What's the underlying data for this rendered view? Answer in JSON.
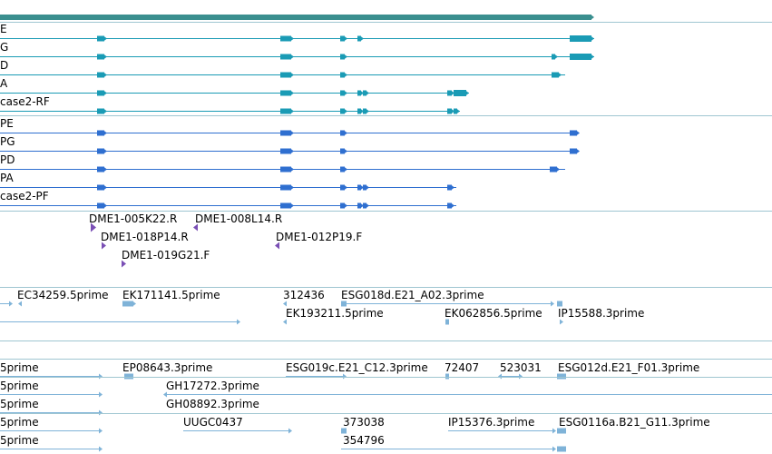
{
  "colors": {
    "gene_span": "#3a8f8f",
    "rna": "#1a9bb5",
    "protein": "#2f6fd0",
    "clone": "#7a4fb5",
    "est": "#7fb3d8",
    "separator": "#9fc6d1"
  },
  "tracks": {
    "transcripts": [
      {
        "label": "E"
      },
      {
        "label": "G"
      },
      {
        "label": "D"
      },
      {
        "label": "A"
      },
      {
        "label": "case2-RF"
      }
    ],
    "polypeptides": [
      {
        "label": "PE"
      },
      {
        "label": "PG"
      },
      {
        "label": "PD"
      },
      {
        "label": "PA"
      },
      {
        "label": "case2-PF"
      }
    ],
    "clone_ends": [
      {
        "label": "DME1-005K22.R"
      },
      {
        "label": "DME1-008L14.R"
      },
      {
        "label": "DME1-018P14.R"
      },
      {
        "label": "DME1-012P19.F"
      },
      {
        "label": "DME1-019G21.F"
      }
    ],
    "ests_a": [
      {
        "label": "EC34259.5prime"
      },
      {
        "label": "EK171141.5prime"
      },
      {
        "label": "312436"
      },
      {
        "label": "ESG018d.E21_A02.3prime"
      },
      {
        "label": "EK193211.5prime"
      },
      {
        "label": "EK062856.5prime"
      },
      {
        "label": "IP15588.3prime"
      }
    ],
    "ests_b": [
      {
        "label": "5prime"
      },
      {
        "label": "EP08643.3prime"
      },
      {
        "label": "ESG019c.E21_C12.3prime"
      },
      {
        "label": "72407"
      },
      {
        "label": "523031"
      },
      {
        "label": "ESG012d.E21_F01.3prime"
      },
      {
        "label": "5prime"
      },
      {
        "label": "GH17272.3prime"
      },
      {
        "label": "5prime"
      },
      {
        "label": "GH08892.3prime"
      },
      {
        "label": "5prime"
      },
      {
        "label": "UUGC0437"
      },
      {
        "label": "373038"
      },
      {
        "label": "IP15376.3prime"
      },
      {
        "label": "ESG0116a.B21_G11.3prime"
      },
      {
        "label": "5prime"
      },
      {
        "label": "354796"
      }
    ]
  }
}
